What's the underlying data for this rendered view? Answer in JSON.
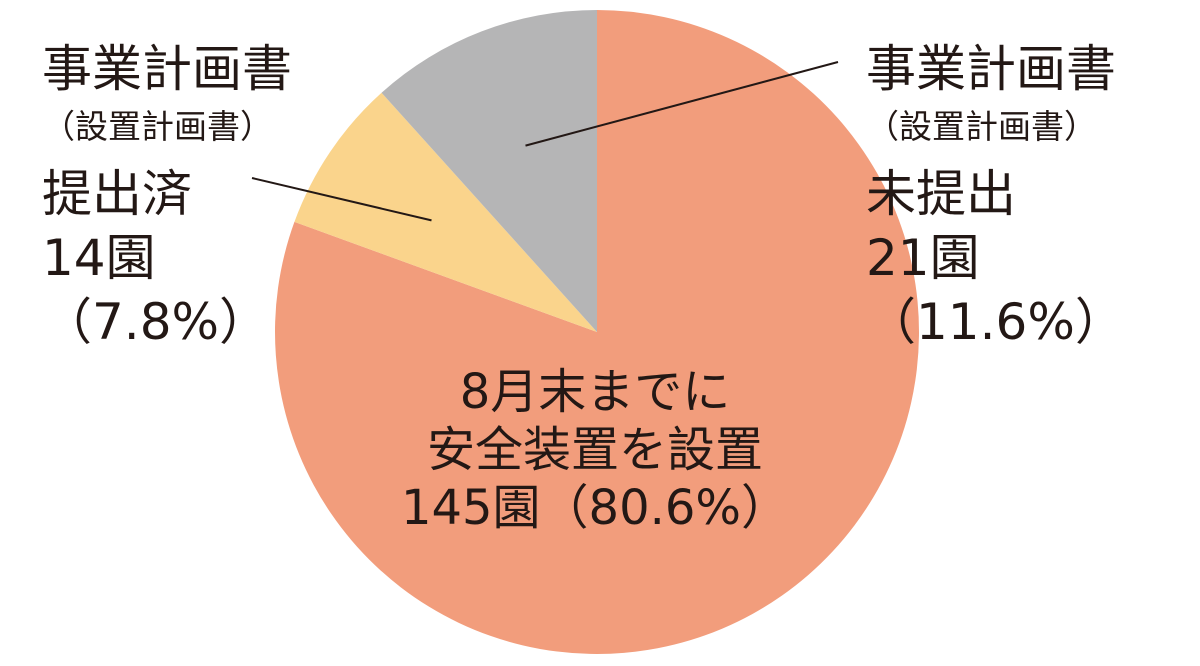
{
  "chart_data": {
    "type": "pie",
    "slices": [
      {
        "name": "8月末までに安全装置を設置",
        "value": 145,
        "percent": 80.6,
        "color": "#f29d7c"
      },
      {
        "name": "事業計画書（設置計画書）提出済",
        "value": 14,
        "percent": 7.8,
        "color": "#fad48c"
      },
      {
        "name": "事業計画書（設置計画書）未提出",
        "value": 21,
        "percent": 11.6,
        "color": "#b5b5b6"
      }
    ],
    "labels": {
      "installed": {
        "line1": "8月末までに",
        "line2": "安全装置を設置",
        "line3": "145園（80.6%）"
      },
      "submitted": {
        "line1": "事業計画書",
        "line2": "（設置計画書）",
        "line3": "提出済",
        "line4": "14園",
        "line5": "（7.8%）"
      },
      "not_submitted": {
        "line1": "事業計画書",
        "line2": "（設置計画書）",
        "line3": "未提出",
        "line4": "21園",
        "line5": "（11.6%）"
      }
    },
    "text_color": "#231815"
  }
}
